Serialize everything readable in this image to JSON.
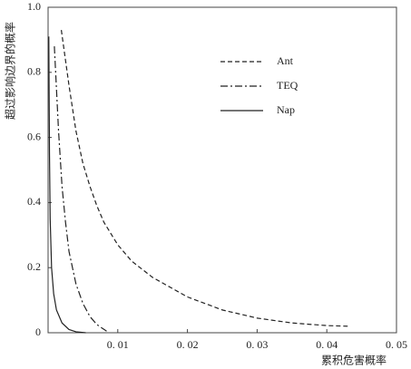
{
  "chart_data": {
    "type": "line",
    "x_label": "累积危害概率",
    "y_label": "超过影响边界的概率",
    "xlim": [
      0,
      0.05
    ],
    "xticks": [
      {
        "value": 0.01,
        "label": "0. 01"
      },
      {
        "value": 0.02,
        "label": "0. 02"
      },
      {
        "value": 0.03,
        "label": "0. 03"
      },
      {
        "value": 0.04,
        "label": "0. 04"
      },
      {
        "value": 0.05,
        "label": "0. 05"
      }
    ],
    "ylim": [
      0,
      1.0
    ],
    "yticks": [
      0,
      0.2,
      0.4,
      0.6,
      0.8,
      {
        "value": 1.0,
        "label": "1.0"
      }
    ],
    "grid": false,
    "legend": "upper-right",
    "series": [
      {
        "name": "Ant",
        "color": "#222222",
        "dash": "dashed",
        "x": [
          0.0019,
          0.003,
          0.004,
          0.005,
          0.006,
          0.007,
          0.008,
          0.01,
          0.012,
          0.015,
          0.02,
          0.025,
          0.03,
          0.035,
          0.04,
          0.043
        ],
        "values": [
          0.93,
          0.76,
          0.62,
          0.52,
          0.45,
          0.39,
          0.34,
          0.27,
          0.22,
          0.17,
          0.11,
          0.07,
          0.045,
          0.03,
          0.022,
          0.02
        ]
      },
      {
        "name": "TEQ",
        "color": "#222222",
        "dash": "dashdot",
        "x": [
          0.0009,
          0.0012,
          0.0015,
          0.002,
          0.0025,
          0.003,
          0.004,
          0.005,
          0.006,
          0.007,
          0.0084
        ],
        "values": [
          0.88,
          0.75,
          0.62,
          0.45,
          0.34,
          0.25,
          0.15,
          0.09,
          0.05,
          0.025,
          0.005
        ]
      },
      {
        "name": "Nap",
        "color": "#222222",
        "dash": "solid",
        "x": [
          0.0001,
          0.0002,
          0.0003,
          0.0005,
          0.0008,
          0.0012,
          0.002,
          0.003,
          0.004,
          0.0054
        ],
        "values": [
          0.91,
          0.55,
          0.35,
          0.2,
          0.12,
          0.07,
          0.03,
          0.01,
          0.003,
          0
        ]
      }
    ]
  }
}
